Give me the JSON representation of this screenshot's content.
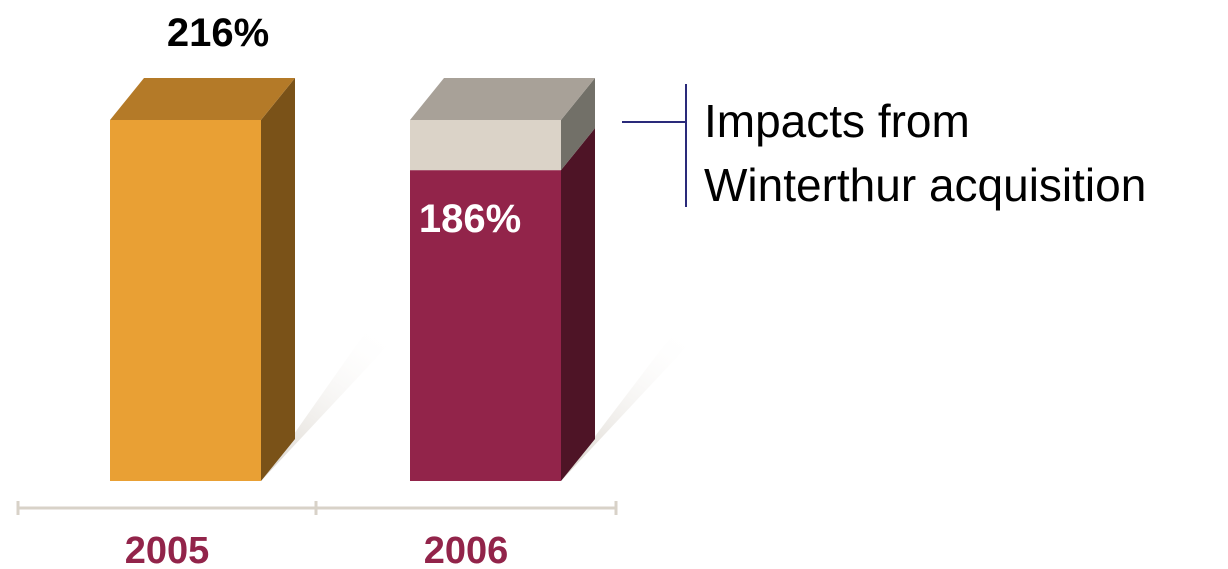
{
  "chart_data": {
    "type": "bar",
    "categories": [
      "2005",
      "2006"
    ],
    "values": [
      216,
      186
    ],
    "segments_2006": [
      {
        "part": "base",
        "value": 186
      },
      {
        "part": "Winterthur impact",
        "value": 30
      }
    ],
    "value_labels": [
      "216%",
      "186%"
    ],
    "annotation": [
      "Impacts from",
      "Winterthur acquisition"
    ],
    "colors": {
      "bar_2005_front": "#E9A034",
      "bar_2005_side": "#7A5218",
      "bar_2005_top": "#B47A28",
      "bar_2006_front": "#92244A",
      "bar_2006_side": "#4E1426",
      "impact_front": "#DBD3C8",
      "impact_side": "#727068",
      "impact_top": "#A8A198",
      "category_label": "#92244A",
      "annotation_line": "#2A2A7A",
      "baseline": "#D8D2C8"
    },
    "ylim": [
      0,
      216
    ]
  }
}
